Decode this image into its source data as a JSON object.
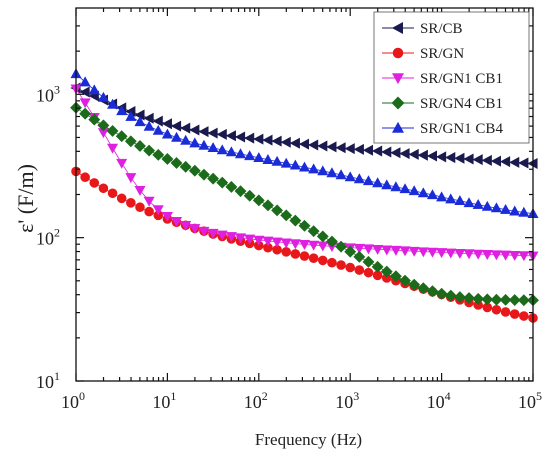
{
  "chart_data": {
    "type": "scatter",
    "title": "",
    "xlabel": "Frequency (Hz)",
    "ylabel": "ε' (F/m)",
    "x_scale": "log",
    "y_scale": "log",
    "xlim": [
      1,
      100000
    ],
    "ylim": [
      10,
      4000
    ],
    "x_ticks": [
      {
        "base": "10",
        "exp": "0",
        "value": 1
      },
      {
        "base": "10",
        "exp": "1",
        "value": 10
      },
      {
        "base": "10",
        "exp": "2",
        "value": 100
      },
      {
        "base": "10",
        "exp": "3",
        "value": 1000
      },
      {
        "base": "10",
        "exp": "4",
        "value": 10000
      },
      {
        "base": "10",
        "exp": "5",
        "value": 100000
      }
    ],
    "y_ticks": [
      {
        "base": "10",
        "exp": "1",
        "value": 10
      },
      {
        "base": "10",
        "exp": "2",
        "value": 100
      },
      {
        "base": "10",
        "exp": "3",
        "value": 1000
      }
    ],
    "grid": false,
    "legend_position": "top-right",
    "x": [
      1.0,
      1.259,
      1.585,
      1.995,
      2.512,
      3.162,
      3.981,
      5.012,
      6.31,
      7.943,
      10.0,
      12.59,
      15.85,
      19.95,
      25.12,
      31.62,
      39.81,
      50.12,
      63.1,
      79.43,
      100.0,
      125.9,
      158.5,
      199.5,
      251.2,
      316.2,
      398.1,
      501.2,
      631.0,
      794.3,
      1000.0,
      1259.0,
      1585.0,
      1995.0,
      2512.0,
      3162.0,
      3981.0,
      5012.0,
      6310.0,
      7943.0,
      10000.0,
      12590.0,
      15850.0,
      19950.0,
      25120.0,
      31620.0,
      39810.0,
      50120.0,
      63100.0,
      79430.0,
      100000.0
    ],
    "series": [
      {
        "name": "SR/CB",
        "color": "#1a1a4e",
        "marker": "triangle-left",
        "values": [
          1107.0,
          1037.0,
          973.0,
          912.0,
          855.0,
          804.0,
          758.0,
          717.0,
          681.0,
          650.0,
          623.0,
          600.0,
          581.0,
          564.0,
          549.0,
          536.0,
          525.0,
          514.0,
          504.0,
          495.0,
          487.0,
          479.0,
          471.0,
          463.0,
          456.0,
          449.0,
          443.0,
          436.0,
          430.0,
          424.0,
          418.0,
          413.0,
          407.0,
          402.0,
          396.0,
          391.0,
          386.0,
          381.0,
          376.0,
          371.0,
          366.0,
          362.0,
          358.0,
          354.0,
          350.0,
          346.0,
          342.0,
          339.0,
          335.0,
          332.0,
          329.0
        ]
      },
      {
        "name": "SR/GN",
        "color": "#e8171a",
        "marker": "circle",
        "values": [
          290.0,
          264.0,
          241.0,
          221.0,
          204.0,
          188.0,
          175.0,
          163.0,
          152.0,
          143.0,
          135.0,
          128.0,
          122.0,
          116.0,
          111.0,
          106.0,
          102.0,
          98.0,
          94.5,
          91.2,
          88.1,
          85.1,
          82.3,
          79.6,
          77.0,
          74.4,
          71.9,
          69.4,
          66.9,
          64.4,
          61.9,
          59.4,
          57.0,
          54.6,
          52.3,
          50.1,
          47.9,
          45.8,
          43.8,
          41.9,
          40.1,
          38.4,
          36.8,
          35.3,
          33.9,
          32.6,
          31.4,
          30.3,
          29.3,
          28.4,
          27.5
        ]
      },
      {
        "name": "SR/GN1 CB1",
        "color": "#e020e0",
        "marker": "triangle-down",
        "values": [
          1093.0,
          875.0,
          691.0,
          541.0,
          422.0,
          331.0,
          263.0,
          214.0,
          180.0,
          157.0,
          141.0,
          130.0,
          122.0,
          116.0,
          111.0,
          107.5,
          104.5,
          102.0,
          99.9,
          98.0,
          96.3,
          94.8,
          93.4,
          92.1,
          90.9,
          89.8,
          88.8,
          87.8,
          86.9,
          86.0,
          85.2,
          84.4,
          83.7,
          83.0,
          82.3,
          81.7,
          81.1,
          80.5,
          79.9,
          79.4,
          78.8,
          78.3,
          77.8,
          77.4,
          76.9,
          76.5,
          76.1,
          75.7,
          75.3,
          75.0,
          74.6
        ]
      },
      {
        "name": "SR/GN4 CB1",
        "color": "#1b6b1b",
        "marker": "diamond",
        "values": [
          806.0,
          732.0,
          666.0,
          607.0,
          555.0,
          510.0,
          470.0,
          436.0,
          405.0,
          378.0,
          354.0,
          332.0,
          312.0,
          293.0,
          275.0,
          258.0,
          242.0,
          226.0,
          211.0,
          196.0,
          182.0,
          168.0,
          155.0,
          143.0,
          131.5,
          121.0,
          111.0,
          102.0,
          94.0,
          86.5,
          79.8,
          73.5,
          67.8,
          62.6,
          58.0,
          53.8,
          50.1,
          47.0,
          44.4,
          42.3,
          40.6,
          39.4,
          38.5,
          37.9,
          37.4,
          37.1,
          36.9,
          36.8,
          36.7,
          36.6,
          36.6
        ]
      },
      {
        "name": "SR/GN1 CB4",
        "color": "#1a2bd8",
        "marker": "triangle-up",
        "values": [
          1390.0,
          1218.0,
          1072.0,
          951.0,
          850.0,
          767.0,
          699.0,
          643.0,
          597.0,
          559.0,
          527.0,
          500.0,
          477.0,
          457.0,
          440.0,
          424.0,
          409.0,
          396.0,
          384.0,
          372.0,
          361.0,
          350.0,
          340.0,
          330.0,
          320.0,
          310.0,
          301.0,
          292.0,
          283.0,
          274.0,
          265.0,
          257.0,
          249.0,
          241.0,
          233.0,
          226.0,
          219.0,
          212.0,
          205.0,
          199.0,
          192.0,
          186.0,
          181.0,
          175.0,
          170.0,
          165.0,
          161.0,
          157.0,
          153.0,
          150.0,
          147.0
        ]
      }
    ]
  }
}
